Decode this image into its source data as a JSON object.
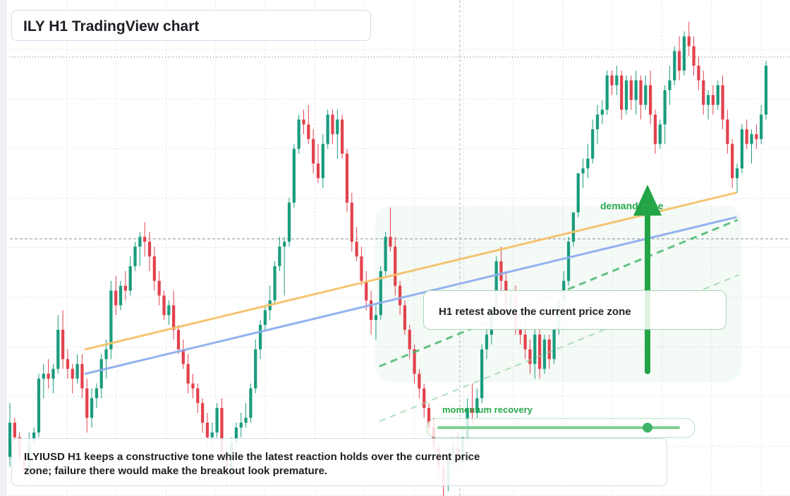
{
  "title": "ILY H1 TradingView chart",
  "annotations": {
    "note": "H1 retest above the current price zone",
    "demand_zone": "demand zone",
    "momentum": "momentum recovery",
    "description": "ILYIUSD H1 keeps a constructive tone while the latest reaction holds over the current price zone; failure there would make the breakout look premature."
  },
  "colors": {
    "bull": "#1a9b7e",
    "bear": "#e2424d",
    "orange_line": "#f5c26b",
    "blue_line": "#8eaef0",
    "green": "#22a447",
    "grid": "#dde2ea"
  },
  "chart_data": {
    "type": "candlestick",
    "title": "ILY H1 TradingView chart",
    "xlabel": "",
    "ylabel": "",
    "grid": true,
    "ylim": [
      0,
      1
    ],
    "note": "Price axis is not labeled; values are relative (0 = chart bottom, 1 = chart top).",
    "ohlc": [
      [
        0.08,
        0.19,
        0.06,
        0.15
      ],
      [
        0.15,
        0.16,
        0.09,
        0.12
      ],
      [
        0.12,
        0.13,
        0.06,
        0.08
      ],
      [
        0.08,
        0.09,
        0.03,
        0.05
      ],
      [
        0.05,
        0.13,
        0.04,
        0.11
      ],
      [
        0.11,
        0.14,
        0.1,
        0.13
      ],
      [
        0.13,
        0.25,
        0.12,
        0.24
      ],
      [
        0.24,
        0.27,
        0.2,
        0.25
      ],
      [
        0.25,
        0.28,
        0.22,
        0.24
      ],
      [
        0.24,
        0.27,
        0.21,
        0.26
      ],
      [
        0.26,
        0.37,
        0.25,
        0.34
      ],
      [
        0.34,
        0.38,
        0.26,
        0.28
      ],
      [
        0.28,
        0.3,
        0.24,
        0.26
      ],
      [
        0.26,
        0.27,
        0.21,
        0.24
      ],
      [
        0.24,
        0.29,
        0.23,
        0.27
      ],
      [
        0.27,
        0.29,
        0.2,
        0.22
      ],
      [
        0.22,
        0.24,
        0.13,
        0.16
      ],
      [
        0.16,
        0.22,
        0.14,
        0.2
      ],
      [
        0.2,
        0.23,
        0.18,
        0.22
      ],
      [
        0.22,
        0.29,
        0.2,
        0.28
      ],
      [
        0.28,
        0.32,
        0.24,
        0.3
      ],
      [
        0.3,
        0.44,
        0.28,
        0.42
      ],
      [
        0.42,
        0.45,
        0.37,
        0.39
      ],
      [
        0.39,
        0.44,
        0.38,
        0.43
      ],
      [
        0.43,
        0.46,
        0.4,
        0.42
      ],
      [
        0.42,
        0.49,
        0.41,
        0.47
      ],
      [
        0.47,
        0.52,
        0.46,
        0.51
      ],
      [
        0.51,
        0.54,
        0.47,
        0.53
      ],
      [
        0.53,
        0.56,
        0.49,
        0.52
      ],
      [
        0.52,
        0.54,
        0.46,
        0.49
      ],
      [
        0.49,
        0.51,
        0.42,
        0.44
      ],
      [
        0.44,
        0.46,
        0.39,
        0.41
      ],
      [
        0.41,
        0.42,
        0.36,
        0.37
      ],
      [
        0.37,
        0.4,
        0.35,
        0.39
      ],
      [
        0.39,
        0.42,
        0.32,
        0.34
      ],
      [
        0.34,
        0.35,
        0.29,
        0.3
      ],
      [
        0.3,
        0.32,
        0.26,
        0.27
      ],
      [
        0.27,
        0.29,
        0.21,
        0.23
      ],
      [
        0.23,
        0.25,
        0.2,
        0.22
      ],
      [
        0.22,
        0.23,
        0.17,
        0.19
      ],
      [
        0.19,
        0.2,
        0.13,
        0.15
      ],
      [
        0.15,
        0.17,
        0.1,
        0.12
      ],
      [
        0.12,
        0.15,
        0.09,
        0.13
      ],
      [
        0.13,
        0.19,
        0.12,
        0.18
      ],
      [
        0.18,
        0.2,
        0.06,
        0.08
      ],
      [
        0.08,
        0.1,
        0.02,
        0.04
      ],
      [
        0.04,
        0.12,
        0.03,
        0.11
      ],
      [
        0.11,
        0.15,
        0.1,
        0.14
      ],
      [
        0.14,
        0.17,
        0.12,
        0.15
      ],
      [
        0.15,
        0.19,
        0.14,
        0.16
      ],
      [
        0.16,
        0.23,
        0.15,
        0.22
      ],
      [
        0.22,
        0.32,
        0.21,
        0.3
      ],
      [
        0.3,
        0.36,
        0.28,
        0.35
      ],
      [
        0.35,
        0.39,
        0.34,
        0.38
      ],
      [
        0.38,
        0.43,
        0.36,
        0.4
      ],
      [
        0.4,
        0.48,
        0.39,
        0.47
      ],
      [
        0.47,
        0.53,
        0.46,
        0.51
      ],
      [
        0.51,
        0.53,
        0.41,
        0.52
      ],
      [
        0.52,
        0.61,
        0.51,
        0.6
      ],
      [
        0.6,
        0.72,
        0.59,
        0.71
      ],
      [
        0.71,
        0.78,
        0.7,
        0.77
      ],
      [
        0.77,
        0.79,
        0.74,
        0.76
      ],
      [
        0.76,
        0.8,
        0.72,
        0.73
      ],
      [
        0.73,
        0.75,
        0.66,
        0.68
      ],
      [
        0.68,
        0.72,
        0.64,
        0.65
      ],
      [
        0.65,
        0.74,
        0.63,
        0.72
      ],
      [
        0.72,
        0.79,
        0.71,
        0.78
      ],
      [
        0.78,
        0.79,
        0.72,
        0.74
      ],
      [
        0.74,
        0.79,
        0.69,
        0.77
      ],
      [
        0.77,
        0.78,
        0.69,
        0.7
      ],
      [
        0.7,
        0.71,
        0.58,
        0.6
      ],
      [
        0.6,
        0.62,
        0.5,
        0.52
      ],
      [
        0.52,
        0.55,
        0.48,
        0.49
      ],
      [
        0.49,
        0.51,
        0.43,
        0.44
      ],
      [
        0.44,
        0.46,
        0.38,
        0.4
      ],
      [
        0.4,
        0.42,
        0.33,
        0.36
      ],
      [
        0.36,
        0.39,
        0.32,
        0.37
      ],
      [
        0.37,
        0.47,
        0.36,
        0.46
      ],
      [
        0.46,
        0.54,
        0.45,
        0.53
      ],
      [
        0.53,
        0.59,
        0.5,
        0.51
      ],
      [
        0.51,
        0.53,
        0.41,
        0.43
      ],
      [
        0.43,
        0.44,
        0.37,
        0.39
      ],
      [
        0.39,
        0.4,
        0.33,
        0.34
      ],
      [
        0.34,
        0.35,
        0.28,
        0.3
      ],
      [
        0.3,
        0.31,
        0.23,
        0.25
      ],
      [
        0.25,
        0.26,
        0.2,
        0.22
      ],
      [
        0.22,
        0.23,
        0.16,
        0.18
      ],
      [
        0.18,
        0.19,
        0.13,
        0.14
      ],
      [
        0.14,
        0.16,
        0.09,
        0.1
      ],
      [
        0.1,
        0.11,
        0.04,
        0.06
      ],
      [
        0.06,
        0.07,
        0.0,
        0.02
      ],
      [
        0.02,
        0.1,
        0.01,
        0.08
      ],
      [
        0.08,
        0.12,
        0.06,
        0.1
      ],
      [
        0.1,
        0.13,
        0.05,
        0.07
      ],
      [
        0.07,
        0.14,
        0.06,
        0.12
      ],
      [
        0.12,
        0.2,
        0.11,
        0.18
      ],
      [
        0.18,
        0.23,
        0.15,
        0.17
      ],
      [
        0.17,
        0.22,
        0.16,
        0.2
      ],
      [
        0.2,
        0.31,
        0.19,
        0.3
      ],
      [
        0.3,
        0.36,
        0.28,
        0.33
      ],
      [
        0.33,
        0.4,
        0.31,
        0.38
      ],
      [
        0.38,
        0.49,
        0.37,
        0.48
      ],
      [
        0.48,
        0.51,
        0.42,
        0.44
      ],
      [
        0.44,
        0.46,
        0.36,
        0.37
      ],
      [
        0.37,
        0.42,
        0.36,
        0.41
      ],
      [
        0.41,
        0.43,
        0.33,
        0.34
      ],
      [
        0.34,
        0.36,
        0.31,
        0.33
      ],
      [
        0.33,
        0.36,
        0.28,
        0.3
      ],
      [
        0.3,
        0.32,
        0.25,
        0.27
      ],
      [
        0.27,
        0.35,
        0.24,
        0.33
      ],
      [
        0.33,
        0.35,
        0.24,
        0.26
      ],
      [
        0.26,
        0.33,
        0.25,
        0.32
      ],
      [
        0.32,
        0.33,
        0.26,
        0.28
      ],
      [
        0.28,
        0.35,
        0.27,
        0.34
      ],
      [
        0.34,
        0.41,
        0.33,
        0.4
      ],
      [
        0.4,
        0.46,
        0.38,
        0.44
      ],
      [
        0.44,
        0.53,
        0.43,
        0.52
      ],
      [
        0.52,
        0.58,
        0.51,
        0.58
      ],
      [
        0.58,
        0.66,
        0.57,
        0.66
      ],
      [
        0.66,
        0.69,
        0.63,
        0.67
      ],
      [
        0.67,
        0.72,
        0.65,
        0.69
      ],
      [
        0.69,
        0.77,
        0.68,
        0.75
      ],
      [
        0.75,
        0.8,
        0.72,
        0.78
      ],
      [
        0.78,
        0.81,
        0.76,
        0.79
      ],
      [
        0.79,
        0.87,
        0.78,
        0.86
      ],
      [
        0.86,
        0.87,
        0.82,
        0.84
      ],
      [
        0.84,
        0.88,
        0.82,
        0.86
      ],
      [
        0.86,
        0.87,
        0.77,
        0.79
      ],
      [
        0.79,
        0.86,
        0.78,
        0.85
      ],
      [
        0.85,
        0.86,
        0.79,
        0.81
      ],
      [
        0.81,
        0.87,
        0.78,
        0.85
      ],
      [
        0.85,
        0.86,
        0.77,
        0.8
      ],
      [
        0.8,
        0.86,
        0.79,
        0.84
      ],
      [
        0.84,
        0.87,
        0.76,
        0.78
      ],
      [
        0.78,
        0.79,
        0.7,
        0.72
      ],
      [
        0.72,
        0.77,
        0.71,
        0.76
      ],
      [
        0.76,
        0.84,
        0.72,
        0.83
      ],
      [
        0.83,
        0.88,
        0.8,
        0.85
      ],
      [
        0.85,
        0.92,
        0.84,
        0.91
      ],
      [
        0.91,
        0.94,
        0.85,
        0.87
      ],
      [
        0.87,
        0.95,
        0.86,
        0.94
      ],
      [
        0.94,
        0.97,
        0.9,
        0.92
      ],
      [
        0.92,
        0.94,
        0.86,
        0.88
      ],
      [
        0.88,
        0.9,
        0.83,
        0.85
      ],
      [
        0.85,
        0.87,
        0.78,
        0.8
      ],
      [
        0.8,
        0.83,
        0.77,
        0.82
      ],
      [
        0.82,
        0.84,
        0.78,
        0.8
      ],
      [
        0.8,
        0.85,
        0.79,
        0.84
      ],
      [
        0.84,
        0.86,
        0.75,
        0.77
      ],
      [
        0.77,
        0.79,
        0.7,
        0.72
      ],
      [
        0.72,
        0.73,
        0.63,
        0.65
      ],
      [
        0.65,
        0.68,
        0.62,
        0.67
      ],
      [
        0.67,
        0.76,
        0.66,
        0.75
      ],
      [
        0.75,
        0.77,
        0.71,
        0.72
      ],
      [
        0.72,
        0.75,
        0.68,
        0.74
      ],
      [
        0.74,
        0.76,
        0.71,
        0.73
      ],
      [
        0.73,
        0.8,
        0.72,
        0.78
      ],
      [
        0.78,
        0.89,
        0.77,
        0.88
      ]
    ],
    "overlays": [
      {
        "type": "line",
        "color": "orange",
        "from": [
          0.1,
          0.3
        ],
        "to": [
          0.96,
          0.62
        ]
      },
      {
        "type": "line",
        "color": "blue",
        "from": [
          0.1,
          0.25
        ],
        "to": [
          0.96,
          0.57
        ]
      }
    ]
  }
}
